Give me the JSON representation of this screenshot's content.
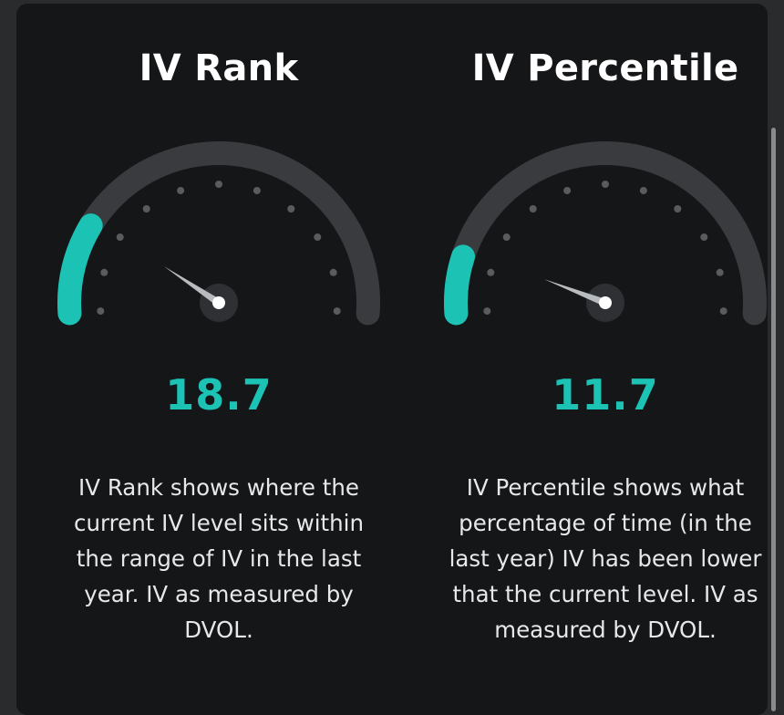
{
  "colors": {
    "accent": "#1cc2b4",
    "track": "#3a3b3e",
    "background": "#151618"
  },
  "gauges": [
    {
      "title": "IV Rank",
      "value": "18.7",
      "percent": 18.7,
      "description": "IV Rank shows where the current IV level sits within the range of IV in the last year. IV as measured by DVOL."
    },
    {
      "title": "IV Percentile",
      "value": "11.7",
      "percent": 11.7,
      "description": "IV Percentile shows what percentage of time (in the last year) IV has been lower that the current level. IV as measured by DVOL."
    }
  ]
}
